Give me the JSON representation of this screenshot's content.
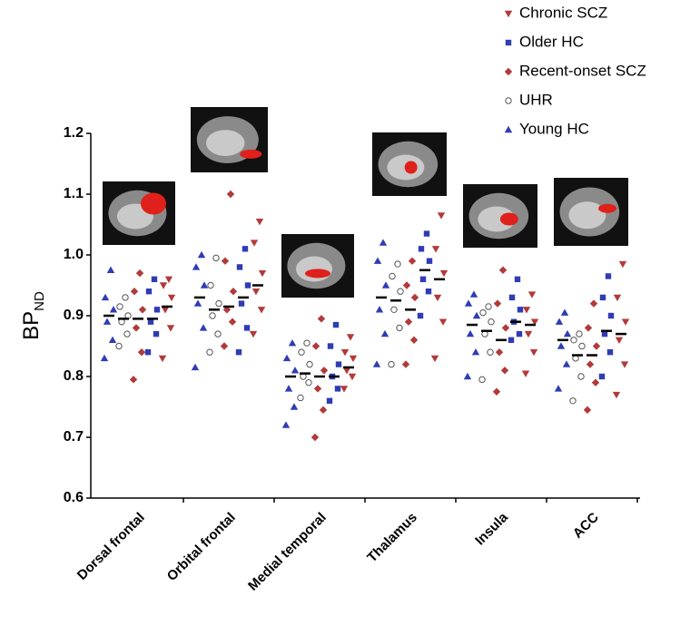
{
  "chart_data": {
    "type": "strip",
    "ylabel": "BP",
    "ylabel_sub": "ND",
    "categories": [
      "Dorsal frontal",
      "Orbital frontal",
      "Medial temporal",
      "Thalamus",
      "Insula",
      "ACC"
    ],
    "ylim": [
      0.6,
      1.2
    ],
    "yticks": [
      0.6,
      0.7,
      0.8,
      0.9,
      {
        "value": 1,
        "label": "1.0"
      },
      1.1,
      1.2
    ],
    "series": [
      {
        "name": "Chronic SCZ",
        "color": "#b23a3a",
        "marker": "triangle-down",
        "values": [
          [
            0.83,
            0.88,
            0.91,
            0.93,
            0.95,
            0.96
          ],
          [
            0.87,
            0.91,
            0.94,
            0.97,
            1.02,
            1.055
          ],
          [
            0.78,
            0.8,
            0.81,
            0.83,
            0.84,
            0.865
          ],
          [
            0.83,
            0.89,
            0.93,
            0.97,
            1.01,
            1.065
          ],
          [
            0.805,
            0.84,
            0.87,
            0.89,
            0.91,
            0.935
          ],
          [
            0.77,
            0.82,
            0.86,
            0.89,
            0.93,
            0.985
          ]
        ],
        "means": [
          0.915,
          0.95,
          0.815,
          0.96,
          0.885,
          0.87
        ]
      },
      {
        "name": "Older HC",
        "color": "#2f3cb4",
        "marker": "square",
        "values": [
          [
            0.84,
            0.87,
            0.89,
            0.91,
            0.94,
            0.96
          ],
          [
            0.84,
            0.88,
            0.92,
            0.95,
            0.98,
            1.01
          ],
          [
            0.76,
            0.78,
            0.8,
            0.82,
            0.85,
            0.885
          ],
          [
            0.9,
            0.94,
            0.96,
            0.99,
            1.01,
            1.035
          ],
          [
            0.86,
            0.87,
            0.89,
            0.91,
            0.93,
            0.96
          ],
          [
            0.8,
            0.84,
            0.87,
            0.9,
            0.93,
            0.965
          ]
        ],
        "means": [
          0.895,
          0.93,
          0.8,
          0.975,
          0.89,
          0.875
        ]
      },
      {
        "name": "Recent-onset SCZ",
        "color": "#b23a3a",
        "marker": "diamond",
        "values": [
          [
            0.795,
            0.84,
            0.88,
            0.91,
            0.94,
            0.97
          ],
          [
            0.85,
            0.89,
            0.91,
            0.94,
            0.99,
            1.1
          ],
          [
            0.7,
            0.745,
            0.78,
            0.81,
            0.85,
            0.895
          ],
          [
            0.82,
            0.86,
            0.89,
            0.93,
            0.95,
            0.99
          ],
          [
            0.775,
            0.81,
            0.84,
            0.88,
            0.92,
            0.975
          ],
          [
            0.745,
            0.79,
            0.82,
            0.85,
            0.88,
            0.92
          ]
        ],
        "means": [
          0.895,
          0.915,
          0.8,
          0.91,
          0.86,
          0.835
        ]
      },
      {
        "name": "UHR",
        "color": "#555555",
        "marker": "circle-open",
        "values": [
          [
            0.85,
            0.87,
            0.89,
            0.9,
            0.915,
            0.93
          ],
          [
            0.84,
            0.87,
            0.9,
            0.92,
            0.95,
            0.995
          ],
          [
            0.765,
            0.79,
            0.8,
            0.82,
            0.84,
            0.855
          ],
          [
            0.82,
            0.88,
            0.91,
            0.94,
            0.965,
            0.985
          ],
          [
            0.795,
            0.84,
            0.87,
            0.89,
            0.905,
            0.915
          ],
          [
            0.76,
            0.8,
            0.83,
            0.85,
            0.86,
            0.87
          ]
        ],
        "means": [
          0.895,
          0.91,
          0.805,
          0.925,
          0.875,
          0.835
        ]
      },
      {
        "name": "Young HC",
        "color": "#2f3cb4",
        "marker": "triangle",
        "values": [
          [
            0.83,
            0.86,
            0.89,
            0.91,
            0.93,
            0.975
          ],
          [
            0.815,
            0.88,
            0.92,
            0.95,
            0.98,
            1.0
          ],
          [
            0.72,
            0.75,
            0.78,
            0.81,
            0.83,
            0.855
          ],
          [
            0.82,
            0.87,
            0.91,
            0.95,
            0.99,
            1.02
          ],
          [
            0.8,
            0.84,
            0.87,
            0.9,
            0.92,
            0.935
          ],
          [
            0.78,
            0.82,
            0.85,
            0.87,
            0.89,
            0.905
          ]
        ],
        "means": [
          0.9,
          0.93,
          0.8,
          0.93,
          0.885,
          0.86
        ]
      }
    ]
  }
}
